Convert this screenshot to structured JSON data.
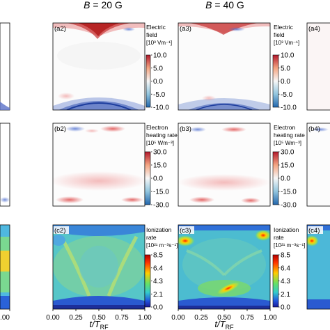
{
  "figure": {
    "headers": [
      {
        "B_label": "B",
        "value_text": " = 20 G"
      },
      {
        "B_label": "B",
        "value_text": " = 40 G"
      }
    ],
    "xlabel_main": "t/T",
    "xlabel_sub": "RF",
    "rows": [
      {
        "id": "a",
        "colorbar": {
          "title1": "Electric",
          "title2": "field",
          "unit": "[10³ Vm⁻¹]",
          "ticks": [
            "10.0",
            "5.0",
            "0.0",
            "-5.0",
            "-10.0"
          ],
          "colors": [
            "#b2182b",
            "#f4a582",
            "#f7f7f7",
            "#92c5de",
            "#2166ac"
          ]
        }
      },
      {
        "id": "b",
        "colorbar": {
          "title1": "Electron",
          "title2": "heating rate",
          "unit": "[10⁵ Wm⁻³]",
          "ticks": [
            "30.0",
            "15.0",
            "0.0",
            "-15.0",
            "-30.0"
          ],
          "colors": [
            "#b2182b",
            "#f4a582",
            "#f7f7f7",
            "#92c5de",
            "#2166ac"
          ]
        }
      },
      {
        "id": "c",
        "colorbar": {
          "title1": "Ionization",
          "title2": "rate",
          "unit": "[10²¹ m⁻³s⁻¹]",
          "ticks": [
            "8.5",
            "6.4",
            "4.3",
            "2.1",
            "0.0"
          ],
          "colors": [
            "#b30000",
            "#ff3300",
            "#ffcc00",
            "#66e066",
            "#33cccc",
            "#2255dd",
            "#1a1a99"
          ]
        }
      }
    ],
    "panel_labels": [
      "(a2)",
      "(a3)",
      "(a4)",
      "(b2)",
      "(b3)",
      "(b4)",
      "(c2)",
      "(c3)",
      "(c4)"
    ]
  },
  "chart_data": {
    "type": "heatmap",
    "x_ticks": [
      "0.00",
      "0.25",
      "0.50",
      "0.75",
      "1.00"
    ],
    "x_ticks_left_partial": [
      "1.00"
    ],
    "xlim": [
      0,
      1
    ],
    "panels": [
      {
        "label": "(a2)",
        "quantity": "Electric field",
        "vmin": -10,
        "vmax": 10
      },
      {
        "label": "(a3)",
        "quantity": "Electric field",
        "vmin": -10,
        "vmax": 10
      },
      {
        "label": "(b2)",
        "quantity": "Electron heating rate",
        "vmin": -30,
        "vmax": 30
      },
      {
        "label": "(b3)",
        "quantity": "Electron heating rate",
        "vmin": -30,
        "vmax": 30
      },
      {
        "label": "(c2)",
        "quantity": "Ionization rate",
        "vmin": 0,
        "vmax": 8.5
      },
      {
        "label": "(c3)",
        "quantity": "Ionization rate",
        "vmin": 0,
        "vmax": 8.5
      }
    ]
  }
}
